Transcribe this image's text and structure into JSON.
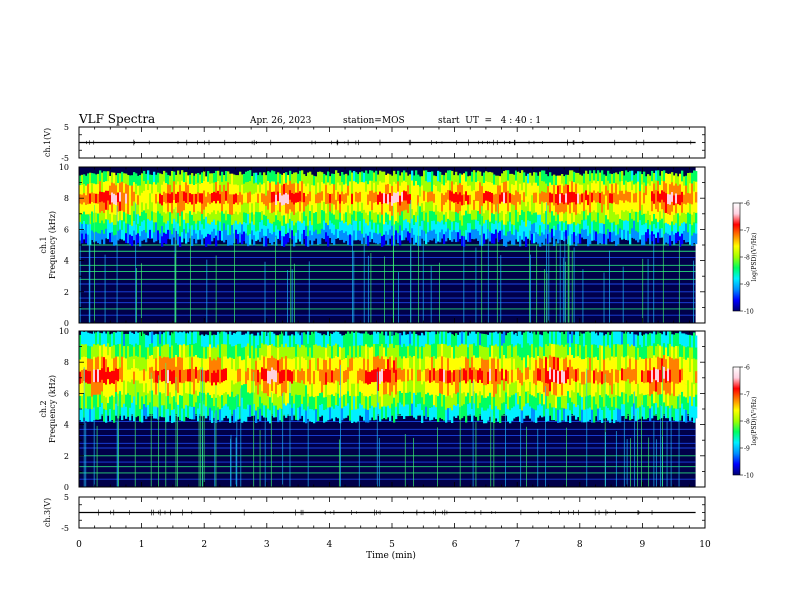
{
  "header": {
    "title": "VLF Spectra",
    "date": "Apr. 26, 2023",
    "station": "station=MOS",
    "start_ut": "start  UT  =   4 : 40 : 1"
  },
  "colors": {
    "plot_frame": "#000000",
    "spectrogram_background": "#00004a",
    "colormap": [
      "#000070",
      "#0000ff",
      "#0090ff",
      "#00f0ff",
      "#00ff60",
      "#a0ff00",
      "#ffff00",
      "#ff8000",
      "#ff0000",
      "#ffd0e0",
      "#ffffff"
    ]
  },
  "chart_data": [
    {
      "type": "line",
      "id": "ch1-waveform",
      "ylabel": "ch.1(V)",
      "ylim": [
        -5,
        5
      ],
      "ytick_labels": [
        "5",
        "-5"
      ],
      "x": [
        0,
        9.85
      ],
      "y": [
        0,
        0
      ],
      "color": "#000000"
    },
    {
      "type": "heatmap",
      "id": "ch1-spectrogram",
      "ylabel": [
        "ch.1",
        "Frequency (kHz)"
      ],
      "ylim": [
        0,
        10
      ],
      "ytick_labels": [
        "0",
        "2",
        "4",
        "6",
        "8",
        "10"
      ],
      "data_xlim": [
        0,
        9.85
      ],
      "band_khz": [
        5.2,
        9.6
      ],
      "band_peak_khz": 8,
      "colorbar": {
        "label": "log(PSD)(V²/Hz)",
        "range": [
          -10,
          -6
        ],
        "tick_labels": [
          "-10",
          "-9",
          "-8",
          "-7",
          "-6"
        ]
      }
    },
    {
      "type": "heatmap",
      "id": "ch2-spectrogram",
      "ylabel": [
        "ch.2",
        "Frequency (kHz)"
      ],
      "ylim": [
        0,
        10
      ],
      "ytick_labels": [
        "0",
        "2",
        "4",
        "6",
        "8",
        "10"
      ],
      "data_xlim": [
        0,
        9.85
      ],
      "band_khz": [
        4.4,
        9.9
      ],
      "band_peak_khz": 7.2,
      "colorbar": {
        "label": "log(PSD)(V²/Hz)",
        "range": [
          -10,
          -6
        ],
        "tick_labels": [
          "-10",
          "-9",
          "-8",
          "-7",
          "-6"
        ]
      }
    },
    {
      "type": "line",
      "id": "ch3-waveform",
      "ylabel": "ch.3(V)",
      "ylim": [
        -5,
        5
      ],
      "ytick_labels": [
        "5",
        "-5"
      ],
      "x": [
        0,
        9.85
      ],
      "y": [
        0,
        0
      ],
      "color": "#000000"
    }
  ],
  "time_axis": {
    "xlabel": "Time (min)",
    "xlim": [
      0,
      10
    ],
    "tick_labels": [
      "0",
      "1",
      "2",
      "3",
      "4",
      "5",
      "6",
      "7",
      "8",
      "9",
      "10"
    ]
  }
}
